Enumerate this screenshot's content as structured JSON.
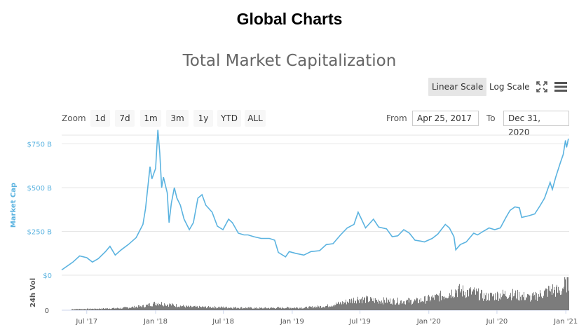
{
  "header": {
    "title": "Global Charts"
  },
  "toolbar": {
    "linear_label": "Linear Scale",
    "log_label": "Log Scale",
    "fullscreen_icon": "expand-icon",
    "menu_icon": "hamburger-menu-icon"
  },
  "zoom": {
    "label": "Zoom",
    "buttons": [
      "1d",
      "7d",
      "1m",
      "3m",
      "1y",
      "YTD",
      "ALL"
    ]
  },
  "range": {
    "from_label": "From",
    "from_value": "Apr 25, 2017",
    "to_label": "To",
    "to_value": "Dec 31, 2020"
  },
  "colors": {
    "line": "#5bb3e0",
    "volume": "#6e6e6e",
    "grid": "#e6e6e6",
    "axis_label": "#5bb3e0"
  },
  "chart_data": {
    "type": "line",
    "title": "Total Market Capitalization",
    "ylabel": "Market Cap",
    "y_ticks": [
      "$0",
      "$250 B",
      "$500 B",
      "$750 B"
    ],
    "ylim": [
      0,
      800
    ],
    "volume_label": "24h Vol",
    "volume_ticks": [
      "0"
    ],
    "x_ticks": [
      "Jul '17",
      "Jan '18",
      "Jul '18",
      "Jan '19",
      "Jul '19",
      "Jan '20",
      "Jul '20",
      "Jan '21"
    ],
    "x_tick_dates": [
      "2017-07-01",
      "2018-01-01",
      "2018-07-01",
      "2019-01-01",
      "2019-07-01",
      "2020-01-01",
      "2020-07-01",
      "2021-01-01"
    ],
    "xlim": [
      "2017-04-25",
      "2021-01-10"
    ],
    "grid": true,
    "series": [
      {
        "name": "Market Cap",
        "unit": "B USD",
        "points": [
          [
            "2017-04-25",
            30
          ],
          [
            "2017-05-25",
            75
          ],
          [
            "2017-06-12",
            110
          ],
          [
            "2017-07-01",
            100
          ],
          [
            "2017-07-16",
            75
          ],
          [
            "2017-08-01",
            95
          ],
          [
            "2017-08-20",
            135
          ],
          [
            "2017-09-01",
            165
          ],
          [
            "2017-09-15",
            115
          ],
          [
            "2017-10-01",
            145
          ],
          [
            "2017-10-20",
            175
          ],
          [
            "2017-11-10",
            215
          ],
          [
            "2017-11-28",
            290
          ],
          [
            "2017-12-05",
            380
          ],
          [
            "2017-12-17",
            620
          ],
          [
            "2017-12-22",
            550
          ],
          [
            "2018-01-01",
            610
          ],
          [
            "2018-01-07",
            830
          ],
          [
            "2018-01-12",
            700
          ],
          [
            "2018-01-17",
            500
          ],
          [
            "2018-01-22",
            560
          ],
          [
            "2018-02-01",
            470
          ],
          [
            "2018-02-06",
            300
          ],
          [
            "2018-02-12",
            410
          ],
          [
            "2018-02-20",
            500
          ],
          [
            "2018-02-27",
            440
          ],
          [
            "2018-03-08",
            400
          ],
          [
            "2018-03-18",
            320
          ],
          [
            "2018-04-01",
            260
          ],
          [
            "2018-04-12",
            300
          ],
          [
            "2018-04-24",
            440
          ],
          [
            "2018-05-05",
            460
          ],
          [
            "2018-05-15",
            400
          ],
          [
            "2018-06-01",
            360
          ],
          [
            "2018-06-15",
            280
          ],
          [
            "2018-06-30",
            260
          ],
          [
            "2018-07-15",
            320
          ],
          [
            "2018-07-25",
            300
          ],
          [
            "2018-08-10",
            240
          ],
          [
            "2018-08-25",
            230
          ],
          [
            "2018-09-05",
            230
          ],
          [
            "2018-09-20",
            220
          ],
          [
            "2018-10-10",
            210
          ],
          [
            "2018-11-01",
            210
          ],
          [
            "2018-11-15",
            200
          ],
          [
            "2018-11-25",
            130
          ],
          [
            "2018-12-14",
            105
          ],
          [
            "2018-12-24",
            135
          ],
          [
            "2019-01-10",
            125
          ],
          [
            "2019-02-01",
            115
          ],
          [
            "2019-02-20",
            135
          ],
          [
            "2019-03-15",
            140
          ],
          [
            "2019-04-02",
            175
          ],
          [
            "2019-04-20",
            180
          ],
          [
            "2019-05-10",
            230
          ],
          [
            "2019-05-28",
            270
          ],
          [
            "2019-06-15",
            290
          ],
          [
            "2019-06-26",
            360
          ],
          [
            "2019-07-05",
            320
          ],
          [
            "2019-07-16",
            270
          ],
          [
            "2019-08-06",
            320
          ],
          [
            "2019-08-20",
            275
          ],
          [
            "2019-09-10",
            265
          ],
          [
            "2019-09-25",
            220
          ],
          [
            "2019-10-10",
            225
          ],
          [
            "2019-10-26",
            260
          ],
          [
            "2019-11-10",
            240
          ],
          [
            "2019-11-25",
            200
          ],
          [
            "2019-12-10",
            195
          ],
          [
            "2019-12-20",
            190
          ],
          [
            "2020-01-10",
            210
          ],
          [
            "2020-01-25",
            235
          ],
          [
            "2020-02-14",
            290
          ],
          [
            "2020-02-25",
            270
          ],
          [
            "2020-03-08",
            220
          ],
          [
            "2020-03-13",
            145
          ],
          [
            "2020-03-25",
            175
          ],
          [
            "2020-04-10",
            190
          ],
          [
            "2020-04-30",
            240
          ],
          [
            "2020-05-10",
            230
          ],
          [
            "2020-05-25",
            250
          ],
          [
            "2020-06-10",
            270
          ],
          [
            "2020-06-25",
            260
          ],
          [
            "2020-07-10",
            270
          ],
          [
            "2020-07-25",
            330
          ],
          [
            "2020-08-05",
            370
          ],
          [
            "2020-08-18",
            390
          ],
          [
            "2020-08-30",
            385
          ],
          [
            "2020-09-05",
            330
          ],
          [
            "2020-09-25",
            340
          ],
          [
            "2020-10-10",
            350
          ],
          [
            "2020-10-25",
            400
          ],
          [
            "2020-11-05",
            440
          ],
          [
            "2020-11-20",
            530
          ],
          [
            "2020-11-26",
            490
          ],
          [
            "2020-12-05",
            560
          ],
          [
            "2020-12-17",
            640
          ],
          [
            "2020-12-25",
            690
          ],
          [
            "2020-12-31",
            770
          ],
          [
            "2021-01-03",
            730
          ],
          [
            "2021-01-08",
            780
          ]
        ]
      },
      {
        "name": "24h Vol",
        "unit": "B USD",
        "points": [
          [
            "2017-04-25",
            1
          ],
          [
            "2017-07-01",
            1.5
          ],
          [
            "2017-10-01",
            2.5
          ],
          [
            "2017-12-01",
            5
          ],
          [
            "2018-01-05",
            9
          ],
          [
            "2018-02-01",
            7
          ],
          [
            "2018-04-01",
            4
          ],
          [
            "2018-07-01",
            3.5
          ],
          [
            "2018-10-01",
            2.5
          ],
          [
            "2018-12-15",
            3
          ],
          [
            "2019-02-01",
            3
          ],
          [
            "2019-04-01",
            5
          ],
          [
            "2019-05-15",
            9
          ],
          [
            "2019-06-25",
            14
          ],
          [
            "2019-08-01",
            12
          ],
          [
            "2019-10-01",
            11
          ],
          [
            "2019-12-01",
            11
          ],
          [
            "2020-01-15",
            15
          ],
          [
            "2020-02-15",
            19
          ],
          [
            "2020-03-13",
            24
          ],
          [
            "2020-05-01",
            21
          ],
          [
            "2020-06-01",
            16
          ],
          [
            "2020-08-01",
            20
          ],
          [
            "2020-10-01",
            15
          ],
          [
            "2020-11-25",
            25
          ],
          [
            "2020-12-15",
            22
          ],
          [
            "2021-01-04",
            35
          ],
          [
            "2021-01-10",
            30
          ]
        ]
      }
    ]
  }
}
